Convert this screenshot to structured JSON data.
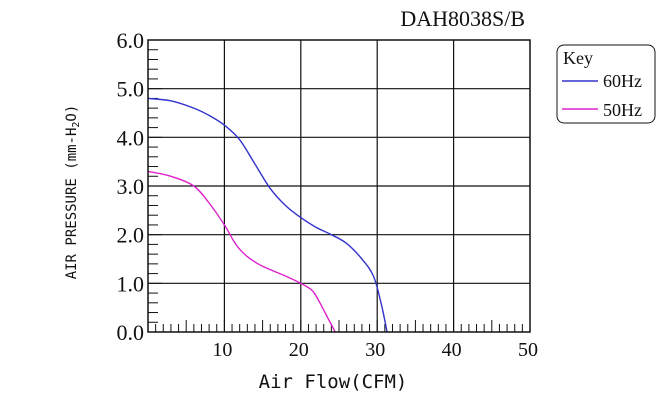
{
  "chart_data": {
    "type": "line",
    "title": "DAH8038S/B",
    "xlabel": "Air Flow(CFM)",
    "ylabel": "AIR PRESSURE (mm-H",
    "ylabel_sub": "2",
    "ylabel_end": "O)",
    "xlim": [
      0,
      50
    ],
    "ylim": [
      0,
      6
    ],
    "x_ticks": [
      {
        "value": 10,
        "label": "10"
      },
      {
        "value": 20,
        "label": "20"
      },
      {
        "value": 30,
        "label": "30"
      },
      {
        "value": 40,
        "label": "40"
      },
      {
        "value": 50,
        "label": "50"
      }
    ],
    "y_ticks": [
      {
        "value": 0,
        "label": "0.0"
      },
      {
        "value": 1,
        "label": "1.0"
      },
      {
        "value": 2,
        "label": "2.0"
      },
      {
        "value": 3,
        "label": "3.0"
      },
      {
        "value": 4,
        "label": "4.0"
      },
      {
        "value": 5,
        "label": "5.0"
      },
      {
        "value": 6,
        "label": "6.0"
      }
    ],
    "grid": true,
    "legend": {
      "title": "Key",
      "placement": "top-right"
    },
    "series": [
      {
        "name": "60Hz",
        "color": "#3333cc",
        "points": [
          [
            0,
            4.8
          ],
          [
            3,
            4.75
          ],
          [
            6,
            4.6
          ],
          [
            8,
            4.45
          ],
          [
            10,
            4.25
          ],
          [
            12,
            3.95
          ],
          [
            14,
            3.45
          ],
          [
            16,
            2.95
          ],
          [
            18,
            2.6
          ],
          [
            20,
            2.35
          ],
          [
            22,
            2.15
          ],
          [
            24,
            2.0
          ],
          [
            26,
            1.82
          ],
          [
            28,
            1.5
          ],
          [
            29.5,
            1.15
          ],
          [
            30.5,
            0.6
          ],
          [
            31.3,
            0.0
          ]
        ]
      },
      {
        "name": "50Hz",
        "color": "#dd22cc",
        "points": [
          [
            0,
            3.3
          ],
          [
            3,
            3.2
          ],
          [
            6,
            3.0
          ],
          [
            8,
            2.65
          ],
          [
            10,
            2.2
          ],
          [
            11.5,
            1.8
          ],
          [
            13,
            1.55
          ],
          [
            15,
            1.35
          ],
          [
            18,
            1.15
          ],
          [
            20,
            1.0
          ],
          [
            21.5,
            0.85
          ],
          [
            22.5,
            0.6
          ],
          [
            23.5,
            0.3
          ],
          [
            24.5,
            0.0
          ]
        ]
      }
    ]
  }
}
